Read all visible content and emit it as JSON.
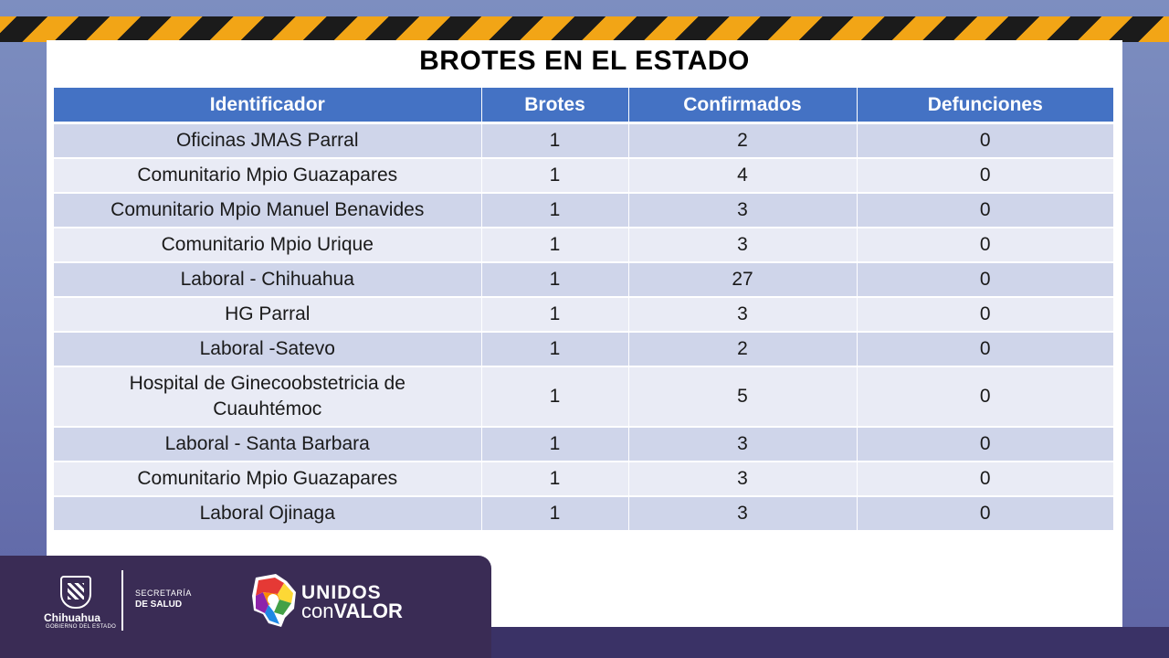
{
  "title": "BROTES EN EL ESTADO",
  "table": {
    "headers": [
      "Identificador",
      "Brotes",
      "Confirmados",
      "Defunciones"
    ],
    "rows": [
      [
        "Oficinas JMAS Parral",
        "1",
        "2",
        "0"
      ],
      [
        "Comunitario Mpio Guazapares",
        "1",
        "4",
        "0"
      ],
      [
        "Comunitario Mpio Manuel Benavides",
        "1",
        "3",
        "0"
      ],
      [
        "Comunitario Mpio Urique",
        "1",
        "3",
        "0"
      ],
      [
        "Laboral - Chihuahua",
        "1",
        "27",
        "0"
      ],
      [
        "HG Parral",
        "1",
        "3",
        "0"
      ],
      [
        "Laboral -Satevo",
        "1",
        "2",
        "0"
      ],
      [
        "Hospital de Ginecoobstetricia de Cuauhtémoc",
        "1",
        "5",
        "0"
      ],
      [
        "Laboral - Santa Barbara",
        "1",
        "3",
        "0"
      ],
      [
        "Comunitario Mpio Guazapares",
        "1",
        "3",
        "0"
      ],
      [
        "Laboral Ojinaga",
        "1",
        "3",
        "0"
      ]
    ]
  },
  "footer": {
    "brand_name": "Chihuahua",
    "brand_sub": "GOBIERNO DEL ESTADO",
    "secretaria_line1": "SECRETARÍA",
    "secretaria_line2": "DE SALUD",
    "slogan_line1": "UNIDOS",
    "slogan_con": "con",
    "slogan_valor": "VALOR",
    "icons": [
      "state-shield-icon",
      "chihuahua-map-icon"
    ]
  },
  "colors": {
    "header_bg": "#4472c4",
    "row_odd": "#cfd5ea",
    "row_even": "#e9ebf5",
    "hazard_yellow": "#f2a516",
    "footer_bg": "#3a2c55"
  }
}
